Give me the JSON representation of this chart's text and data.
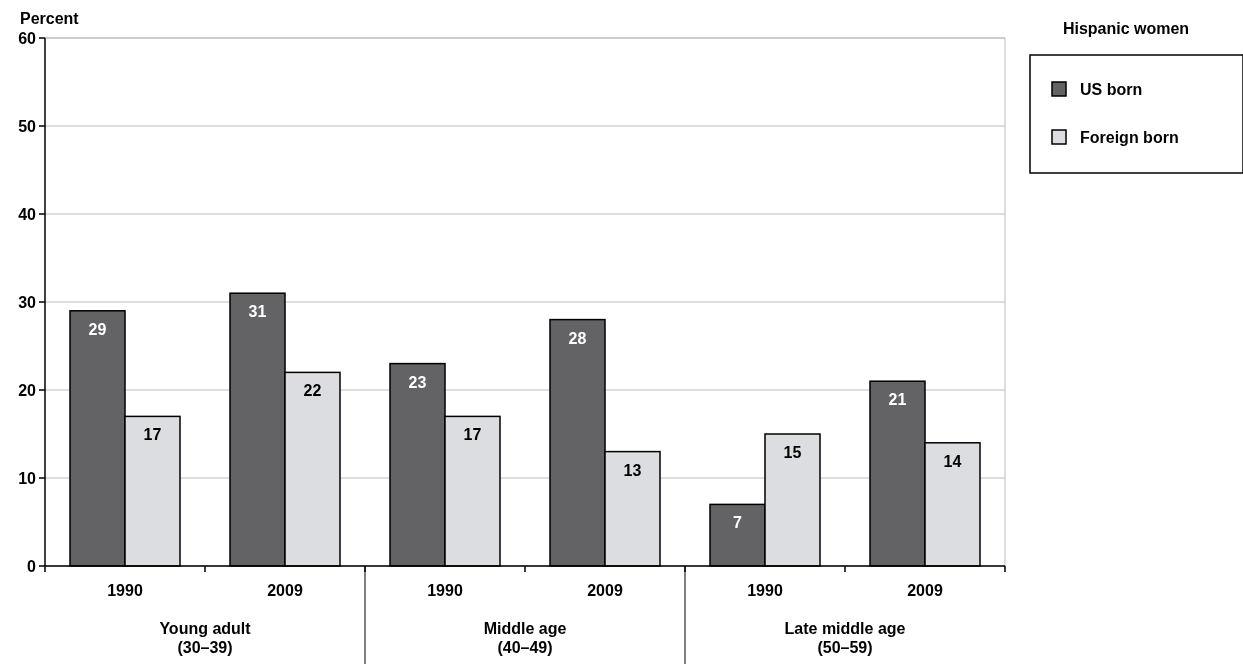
{
  "chart_data": {
    "type": "bar",
    "ylabel": "Percent",
    "legend_title": "Hispanic women",
    "categories": [
      "1990",
      "2009",
      "1990",
      "2009",
      "1990",
      "2009"
    ],
    "series": [
      {
        "name": "US born",
        "color": "#636366",
        "values": [
          29,
          31,
          23,
          28,
          7,
          21
        ]
      },
      {
        "name": "Foreign born",
        "color": "#dcdde0",
        "values": [
          17,
          22,
          17,
          13,
          15,
          14
        ]
      }
    ],
    "ylim": [
      0,
      60
    ],
    "yticks": [
      0,
      10,
      20,
      30,
      40,
      50,
      60
    ],
    "grid": "y",
    "legend": "top right",
    "data_labels": true,
    "annotations": [
      "Young adult\n(30–39)",
      "Middle age\n(40–49)",
      "Late middle age\n(50–59)"
    ]
  }
}
